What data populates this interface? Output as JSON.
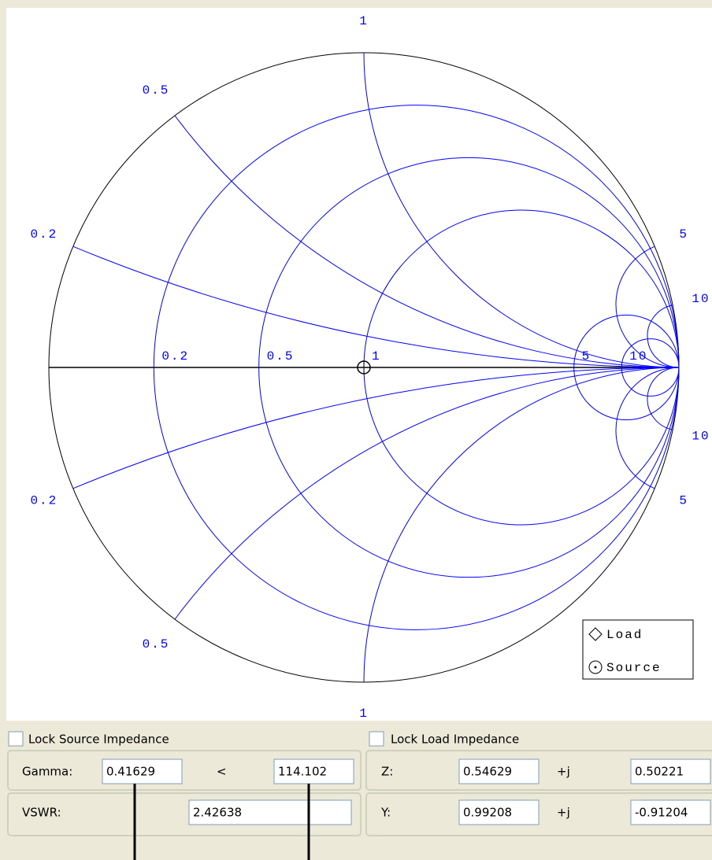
{
  "smith": {
    "resistance": [
      "0.2",
      "0.5",
      "1",
      "5",
      "10"
    ],
    "reactance_upper": [
      "0.2",
      "0.5",
      "1",
      "5",
      "10"
    ],
    "reactance_lower": [
      "0.2",
      "0.5",
      "1",
      "5",
      "10"
    ],
    "legend": {
      "load": "Load",
      "source": "Source"
    }
  },
  "lock_source": "Lock Source Impedance",
  "lock_load": "Lock Load Impedance",
  "gamma": {
    "label": "Gamma:",
    "magnitude": "0.41629",
    "separator": "<",
    "angle": "114.102"
  },
  "vswr": {
    "label": "VSWR:",
    "value": "2.42638"
  },
  "z": {
    "label": "Z:",
    "real": "0.54629",
    "separator": "+j",
    "imag": "0.50221"
  },
  "y": {
    "label": "Y:",
    "real": "0.99208",
    "separator": "+j",
    "imag": "-0.91204"
  }
}
